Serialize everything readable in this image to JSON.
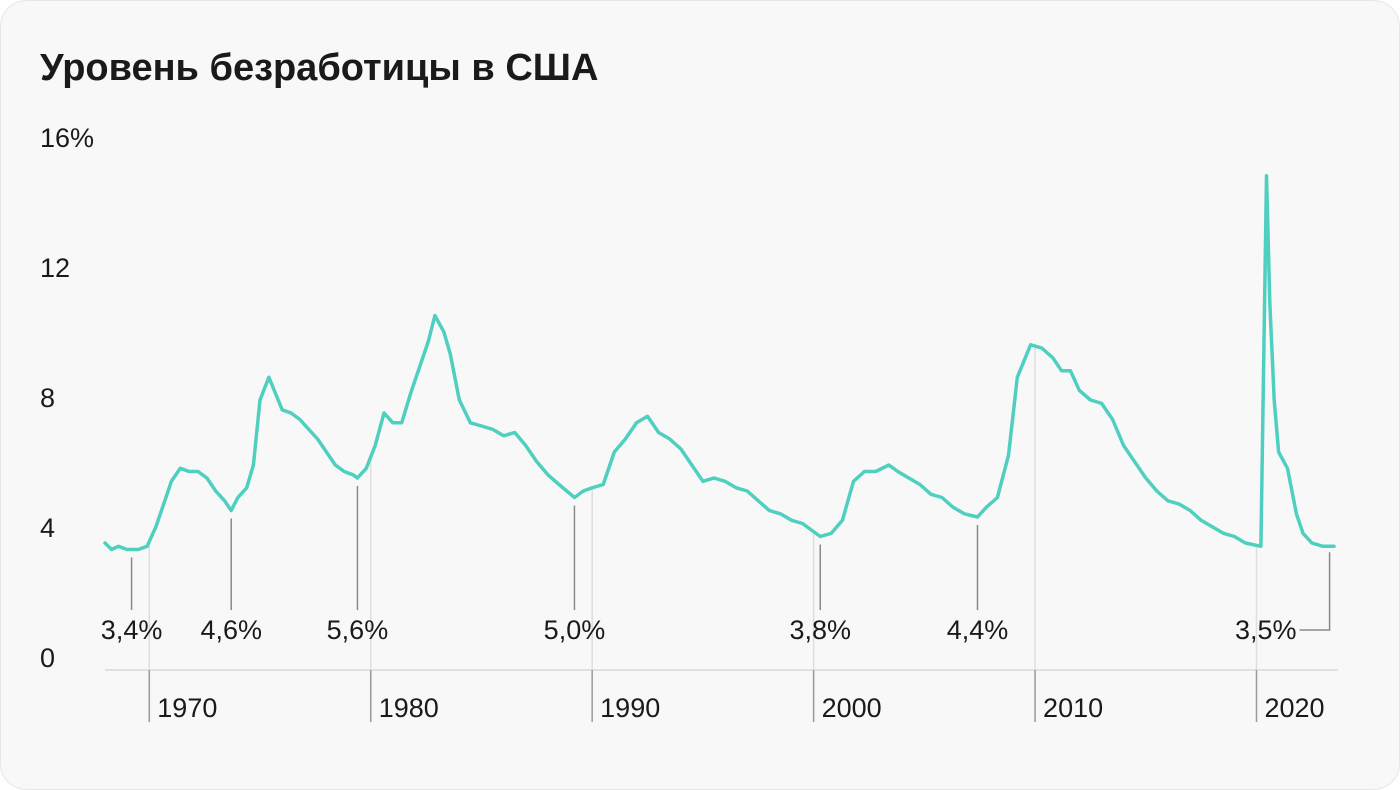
{
  "chart_data": {
    "type": "line",
    "title": "Уровень безработицы в США",
    "color": "#4fcfc0",
    "x": [
      1968.0,
      1968.3,
      1968.6,
      1969.0,
      1969.5,
      1969.9,
      1970.3,
      1970.7,
      1971.0,
      1971.4,
      1971.8,
      1972.2,
      1972.6,
      1973.0,
      1973.4,
      1973.7,
      1974.0,
      1974.4,
      1974.7,
      1975.0,
      1975.4,
      1975.7,
      1976.0,
      1976.4,
      1976.8,
      1977.2,
      1977.6,
      1978.0,
      1978.4,
      1978.8,
      1979.2,
      1979.4,
      1979.8,
      1980.2,
      1980.6,
      1981.0,
      1981.4,
      1981.8,
      1982.2,
      1982.6,
      1982.9,
      1983.3,
      1983.6,
      1984.0,
      1984.5,
      1985.0,
      1985.5,
      1986.0,
      1986.5,
      1987.0,
      1987.5,
      1988.0,
      1988.5,
      1989.2,
      1989.6,
      1990.0,
      1990.5,
      1991.0,
      1991.5,
      1992.0,
      1992.5,
      1993.0,
      1993.5,
      1994.0,
      1994.5,
      1995.0,
      1995.5,
      1996.0,
      1996.5,
      1997.0,
      1997.5,
      1998.0,
      1998.5,
      1999.0,
      1999.5,
      2000.3,
      2000.8,
      2001.3,
      2001.8,
      2002.3,
      2002.8,
      2003.4,
      2003.8,
      2004.3,
      2004.8,
      2005.3,
      2005.8,
      2006.3,
      2006.8,
      2007.4,
      2007.8,
      2008.3,
      2008.8,
      2009.2,
      2009.8,
      2010.3,
      2010.8,
      2011.2,
      2011.6,
      2012.0,
      2012.5,
      2013.0,
      2013.5,
      2014.0,
      2014.5,
      2015.0,
      2015.5,
      2016.0,
      2016.5,
      2017.0,
      2017.5,
      2018.0,
      2018.5,
      2019.0,
      2019.5,
      2020.2,
      2020.45,
      2020.6,
      2020.8,
      2021.0,
      2021.4,
      2021.8,
      2022.1,
      2022.5,
      2023.0,
      2023.3,
      2023.5
    ],
    "values": [
      3.6,
      3.4,
      3.5,
      3.4,
      3.4,
      3.5,
      4.1,
      4.9,
      5.5,
      5.9,
      5.8,
      5.8,
      5.6,
      5.2,
      4.9,
      4.6,
      5.0,
      5.3,
      6.0,
      8.0,
      8.7,
      8.2,
      7.7,
      7.6,
      7.4,
      7.1,
      6.8,
      6.4,
      6.0,
      5.8,
      5.7,
      5.6,
      5.9,
      6.6,
      7.6,
      7.3,
      7.3,
      8.2,
      9.0,
      9.8,
      10.6,
      10.1,
      9.4,
      8.0,
      7.3,
      7.2,
      7.1,
      6.9,
      7.0,
      6.6,
      6.1,
      5.7,
      5.4,
      5.0,
      5.2,
      5.3,
      5.4,
      6.4,
      6.8,
      7.3,
      7.5,
      7.0,
      6.8,
      6.5,
      6.0,
      5.5,
      5.6,
      5.5,
      5.3,
      5.2,
      4.9,
      4.6,
      4.5,
      4.3,
      4.2,
      3.8,
      3.9,
      4.3,
      5.5,
      5.8,
      5.8,
      6.0,
      5.8,
      5.6,
      5.4,
      5.1,
      5.0,
      4.7,
      4.5,
      4.4,
      4.7,
      5.0,
      6.3,
      8.7,
      9.7,
      9.6,
      9.3,
      8.9,
      8.9,
      8.3,
      8.0,
      7.9,
      7.4,
      6.6,
      6.1,
      5.6,
      5.2,
      4.9,
      4.8,
      4.6,
      4.3,
      4.1,
      3.9,
      3.8,
      3.6,
      3.5,
      14.9,
      11.0,
      8.0,
      6.4,
      5.9,
      4.5,
      3.9,
      3.6,
      3.5,
      3.5,
      3.5
    ],
    "xlim": [
      1968,
      2023.5
    ],
    "xticks": [
      1970,
      1980,
      1990,
      2000,
      2010,
      2020
    ],
    "ylim": [
      0,
      16
    ],
    "yticks": [
      0,
      4,
      8,
      12,
      {
        "value": 16,
        "label": "16%"
      }
    ],
    "annotations": [
      {
        "label": "3,4%",
        "x": 1969.2,
        "value": 3.4
      },
      {
        "label": "4,6%",
        "x": 1973.7,
        "value": 4.6
      },
      {
        "label": "5,6%",
        "x": 1979.4,
        "value": 5.6
      },
      {
        "label": "5,0%",
        "x": 1989.2,
        "value": 5.0
      },
      {
        "label": "3,8%",
        "x": 2000.3,
        "value": 3.8
      },
      {
        "label": "4,4%",
        "x": 2007.4,
        "value": 4.4
      },
      {
        "label": "3,5%",
        "x": 2023.3,
        "value": 3.5
      }
    ]
  }
}
